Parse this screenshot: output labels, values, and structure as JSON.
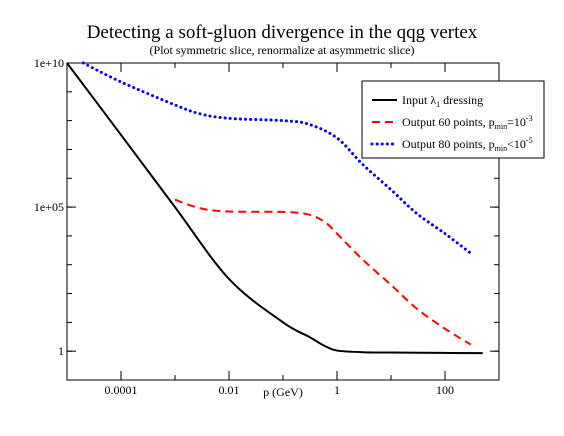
{
  "chart_data": {
    "type": "line",
    "title": "Detecting a soft-gluon divergence in the qqg vertex",
    "subtitle": "(Plot symmetric slice, renormalize at asymmetric slice)",
    "xlabel": "p (GeV)",
    "ylabel": "",
    "x_scale": "log",
    "y_scale": "log",
    "xlim": [
      1e-05,
      1000
    ],
    "ylim": [
      0.1,
      10000000000.0
    ],
    "grid": false,
    "legend_position": "top-right",
    "x_ticks": [
      {
        "value": 0.0001,
        "label": "0.0001"
      },
      {
        "value": 0.01,
        "label": "0.01"
      },
      {
        "value": 1,
        "label": "1"
      },
      {
        "value": 100,
        "label": "100"
      }
    ],
    "y_ticks": [
      {
        "value": 10000000000.0,
        "label": "1e+10"
      },
      {
        "value": 100000.0,
        "label": "1e+05"
      },
      {
        "value": 1,
        "label": "1"
      }
    ],
    "series": [
      {
        "name": "Input λ1 dressing",
        "legend": {
          "base": "Input λ",
          "sub": "1",
          "tail": " dressing",
          "sup": "",
          "tail2": ""
        },
        "color": "#000000",
        "style": "solid",
        "points": [
          [
            1e-05,
            10000000000.0
          ],
          [
            0.0001,
            32000000.0
          ],
          [
            0.001,
            100000.0
          ],
          [
            0.01,
            320
          ],
          [
            0.1,
            10
          ],
          [
            0.3,
            3.2
          ],
          [
            0.6,
            1.5
          ],
          [
            1,
            1.05
          ],
          [
            3,
            0.92
          ],
          [
            10,
            0.9
          ],
          [
            100,
            0.87
          ],
          [
            500,
            0.86
          ]
        ]
      },
      {
        "name": "Output 60 points, pmin=10-3",
        "legend": {
          "base": "Output 60 points, p",
          "sub": "min",
          "tail": "=10",
          "sup": "-3",
          "tail2": ""
        },
        "color": "#ff0000",
        "style": "dashed",
        "points": [
          [
            0.001,
            180000.0
          ],
          [
            0.003,
            90000.0
          ],
          [
            0.01,
            70000.0
          ],
          [
            0.1,
            68000.0
          ],
          [
            0.3,
            55000.0
          ],
          [
            0.6,
            30000.0
          ],
          [
            1,
            12000.0
          ],
          [
            3,
            1500.0
          ],
          [
            10,
            200
          ],
          [
            30,
            30
          ],
          [
            100,
            6
          ],
          [
            300,
            1.7
          ]
        ]
      },
      {
        "name": "Output 80 points, pmin<10-5",
        "legend": {
          "base": "Output 80 points, p",
          "sub": "min",
          "tail": "<10",
          "sup": "-5",
          "tail2": ""
        },
        "color": "#0000ff",
        "style": "dotted",
        "points": [
          [
            2e-05,
            10000000000.0
          ],
          [
            0.0001,
            2200000000.0
          ],
          [
            0.001,
            350000000.0
          ],
          [
            0.003,
            170000000.0
          ],
          [
            0.01,
            120000000.0
          ],
          [
            0.1,
            100000000.0
          ],
          [
            0.3,
            75000000.0
          ],
          [
            1,
            25000000.0
          ],
          [
            3,
            3000000.0
          ],
          [
            10,
            400000.0
          ],
          [
            30,
            60000.0
          ],
          [
            100,
            12000.0
          ],
          [
            300,
            2500.0
          ]
        ]
      }
    ]
  }
}
